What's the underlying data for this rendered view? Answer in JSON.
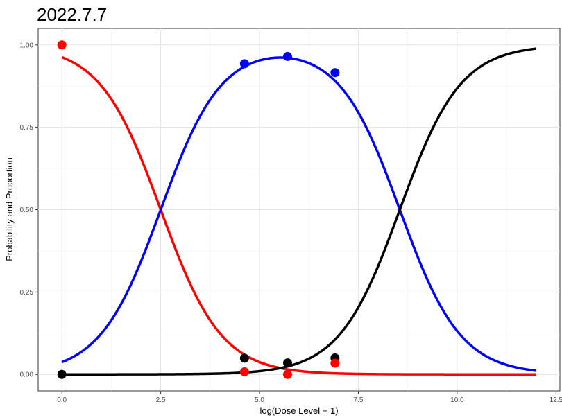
{
  "chart_data": {
    "type": "line",
    "title": "2022.7.7",
    "xlabel": "log(Dose Level + 1)",
    "ylabel": "Probability and Proportion",
    "xlim": [
      -0.6,
      12.6
    ],
    "ylim": [
      -0.05,
      1.05
    ],
    "xticks": [
      0,
      2.5,
      5,
      7.5,
      10,
      12.5
    ],
    "xtick_labels": [
      "0.0",
      "2.5",
      "5.0",
      "7.5",
      "10.0",
      "12.5"
    ],
    "yticks": [
      0,
      0.25,
      0.5,
      0.75,
      1
    ],
    "ytick_labels": [
      "0.00",
      "0.25",
      "0.50",
      "0.75",
      "1.00"
    ],
    "grid": true,
    "legend": "none",
    "series": [
      {
        "color": "#ff0000",
        "curve": "logistic-decreasing",
        "midpoint": 2.5,
        "slope": 1.3,
        "x_range": [
          0,
          12
        ],
        "points": [
          {
            "x": 0.0,
            "y": 1.0
          },
          {
            "x": 4.62,
            "y": 0.008
          },
          {
            "x": 5.71,
            "y": 0.0
          },
          {
            "x": 6.91,
            "y": 0.034
          }
        ]
      },
      {
        "color": "#0000ff",
        "curve": "difference",
        "x_range": [
          0,
          12
        ],
        "points": [
          {
            "x": 4.62,
            "y": 0.943
          },
          {
            "x": 5.71,
            "y": 0.965
          },
          {
            "x": 6.91,
            "y": 0.916
          }
        ]
      },
      {
        "color": "#000000",
        "curve": "logistic-increasing",
        "midpoint": 8.55,
        "slope": 1.3,
        "x_range": [
          0,
          12
        ],
        "points": [
          {
            "x": 0.0,
            "y": 0.0
          },
          {
            "x": 4.62,
            "y": 0.049
          },
          {
            "x": 5.71,
            "y": 0.035
          },
          {
            "x": 6.91,
            "y": 0.05
          }
        ]
      }
    ]
  }
}
